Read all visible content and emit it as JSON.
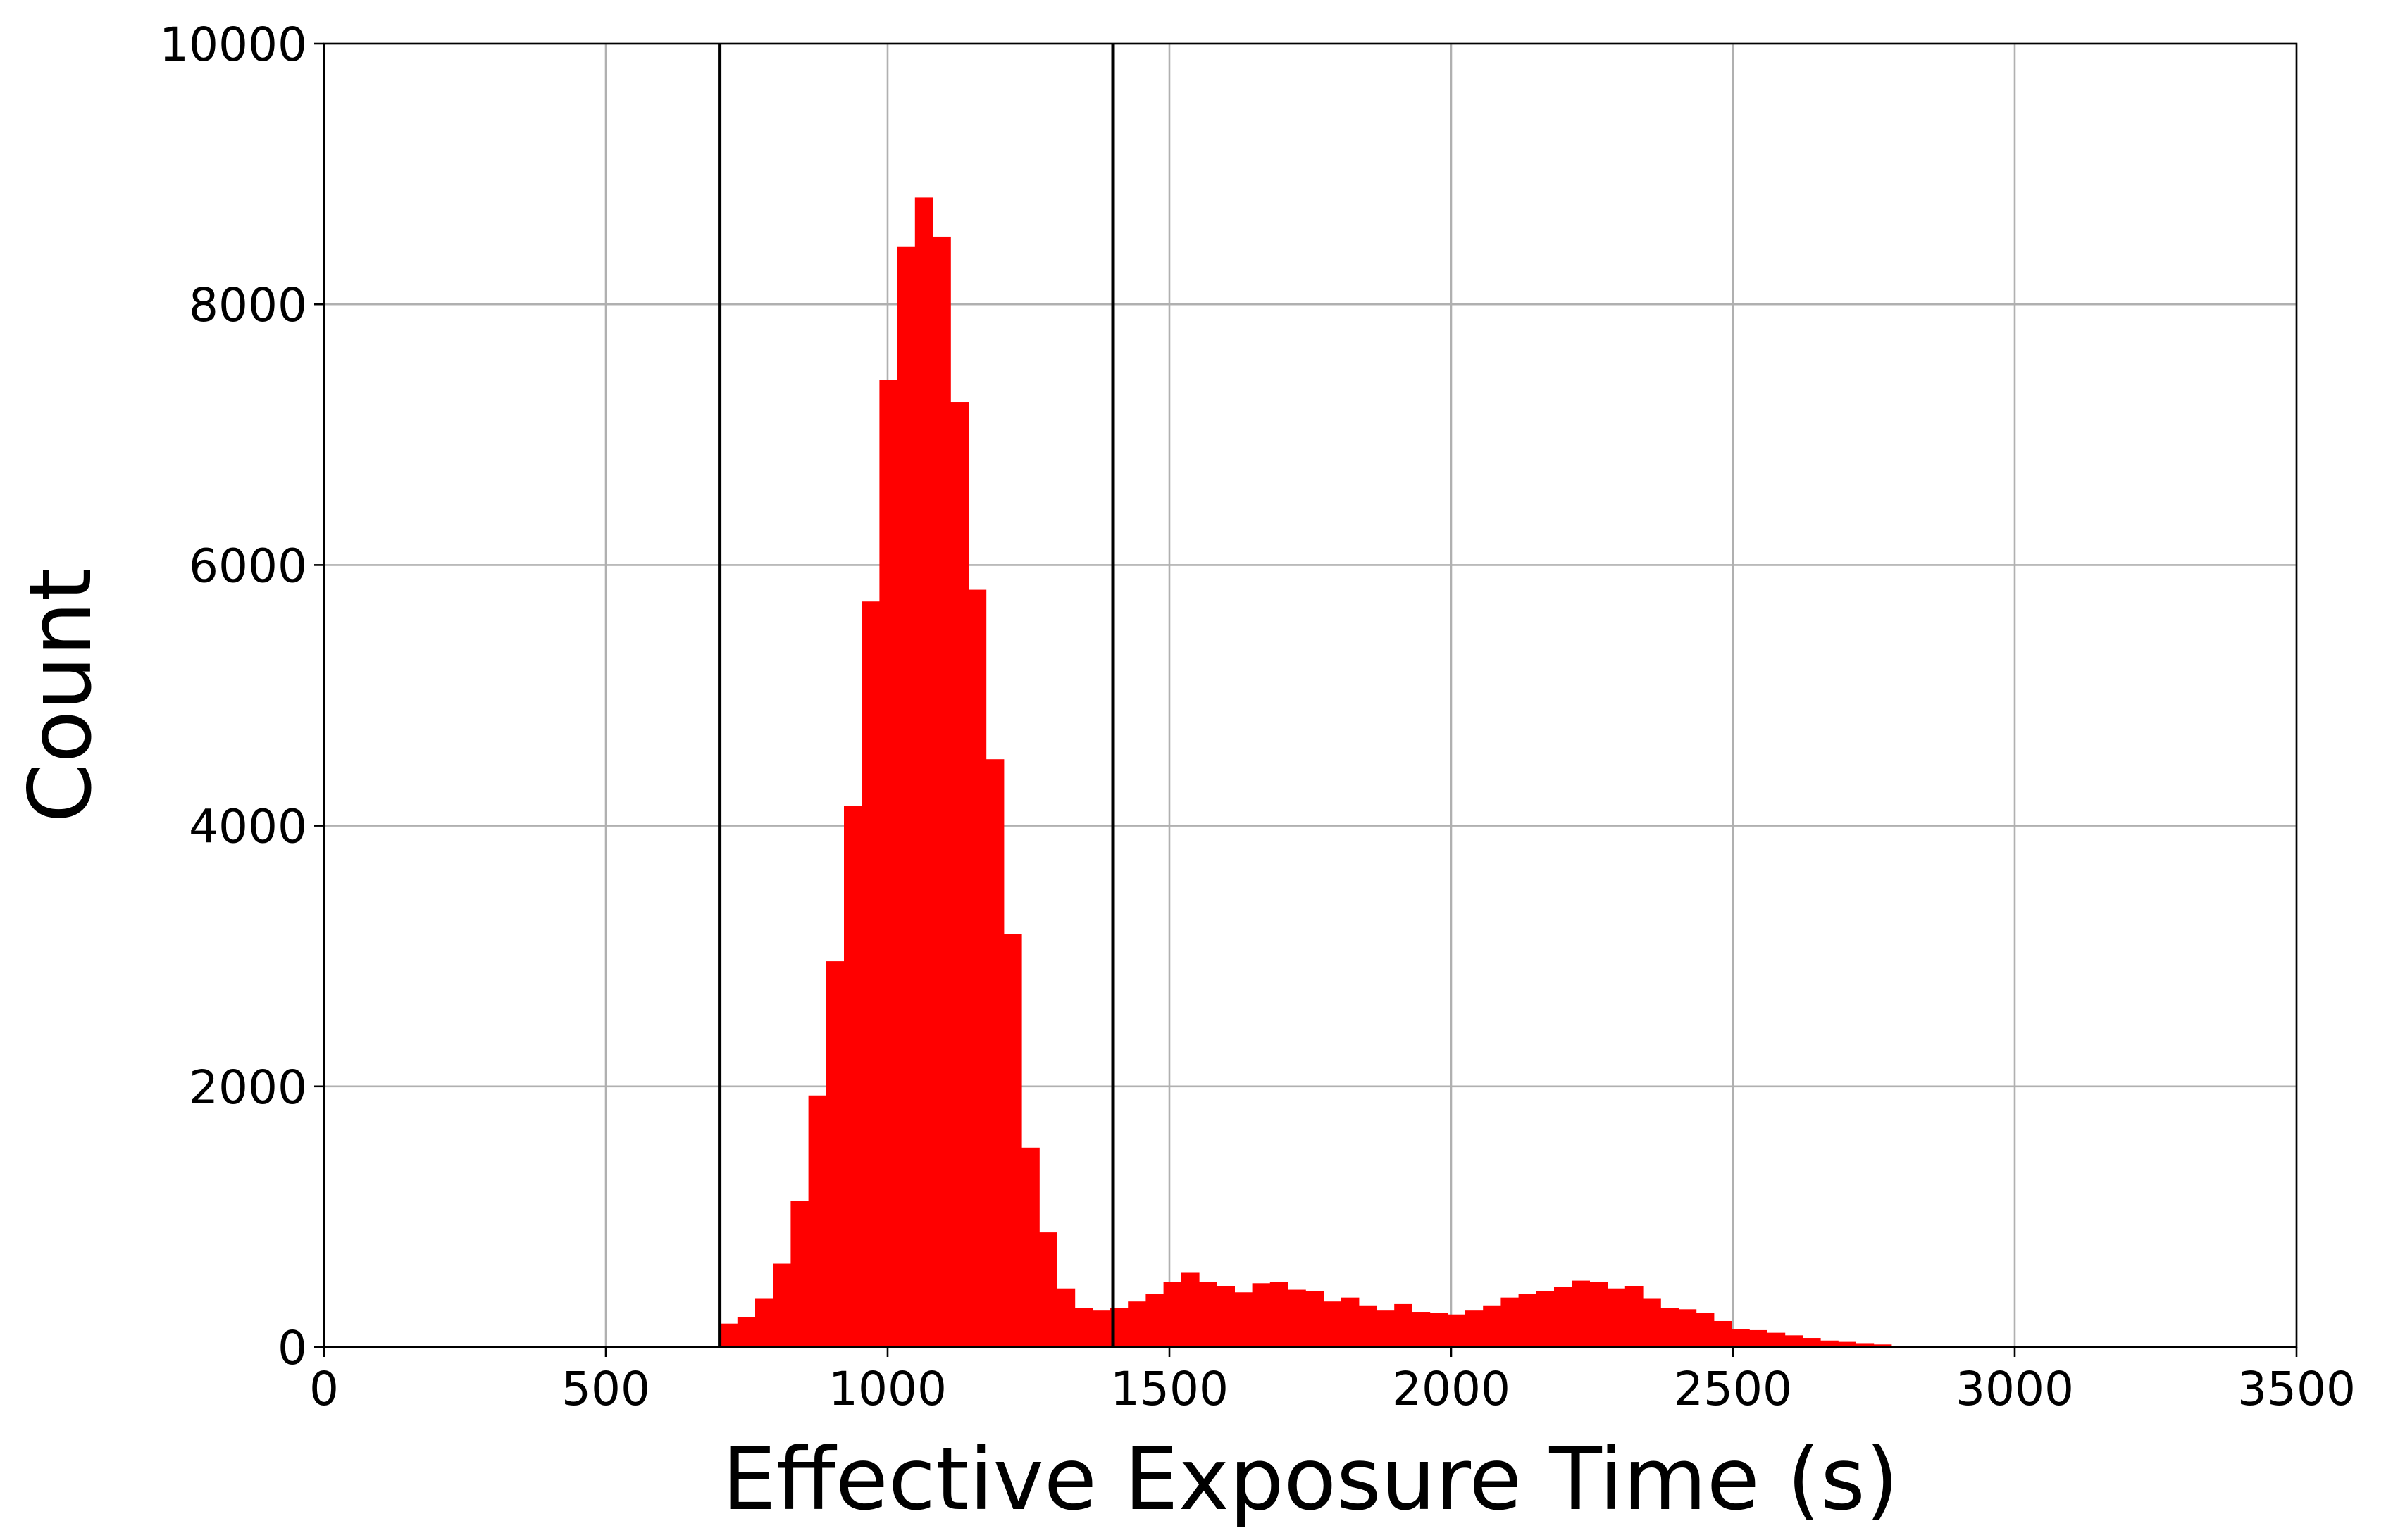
{
  "chart_data": {
    "type": "bar",
    "histogram": true,
    "xlabel": "Effective Exposure Time (s)",
    "ylabel": "Count",
    "xlim": [
      0,
      3500
    ],
    "ylim": [
      0,
      10000
    ],
    "xticks": [
      0,
      500,
      1000,
      1500,
      2000,
      2500,
      3000,
      3500
    ],
    "yticks": [
      0,
      2000,
      4000,
      6000,
      8000,
      10000
    ],
    "grid": true,
    "bar_color": "#ff0000",
    "bin_width": 31.5,
    "bins_start": [
      702,
      733.5,
      765,
      796.5,
      828,
      859.5,
      891,
      922.5,
      954,
      985.5,
      1017,
      1048.5,
      1080,
      1111.5,
      1143,
      1174.5,
      1206,
      1237.5,
      1269,
      1300.5,
      1332,
      1363.5,
      1395,
      1426.5,
      1458,
      1489.5,
      1521,
      1552.5,
      1584,
      1615.5,
      1647,
      1678.5,
      1710,
      1741.5,
      1773,
      1804.5,
      1836,
      1867.5,
      1899,
      1930.5,
      1962,
      1993.5,
      2025,
      2056.5,
      2088,
      2119.5,
      2151,
      2182.5,
      2214,
      2245.5,
      2277,
      2308.5,
      2340,
      2371.5,
      2403,
      2434.5,
      2466,
      2497.5,
      2529,
      2560.5,
      2592,
      2623.5,
      2655,
      2686.5,
      2718,
      2749.5,
      2781,
      2812.5
    ],
    "values": [
      180,
      230,
      370,
      640,
      1120,
      1930,
      2960,
      4150,
      5720,
      7420,
      8440,
      8820,
      8520,
      7250,
      5810,
      4510,
      3170,
      1530,
      880,
      450,
      300,
      280,
      300,
      350,
      410,
      500,
      570,
      500,
      470,
      420,
      490,
      500,
      440,
      430,
      350,
      380,
      320,
      280,
      330,
      270,
      260,
      250,
      280,
      320,
      380,
      410,
      430,
      460,
      510,
      500,
      450,
      470,
      370,
      300,
      290,
      260,
      200,
      140,
      130,
      110,
      90,
      70,
      50,
      40,
      30,
      20,
      10,
      5
    ],
    "vertical_lines": [
      702,
      1400
    ]
  }
}
